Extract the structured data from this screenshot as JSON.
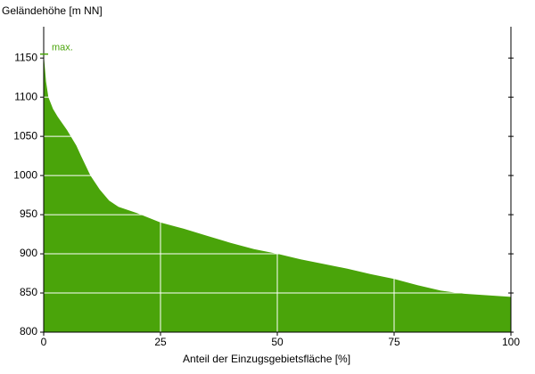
{
  "chart_data": {
    "type": "area",
    "y_title": "Geländehöhe [m NN]",
    "x_title": "Anteil der Einzugsgebietsfläche [%]",
    "x": [
      0,
      0.5,
      1,
      2,
      3,
      5,
      7,
      8,
      10,
      12,
      14,
      16,
      20,
      25,
      30,
      35,
      40,
      45,
      50,
      55,
      60,
      65,
      70,
      75,
      80,
      85,
      90,
      95,
      100
    ],
    "values": [
      1155,
      1120,
      1100,
      1085,
      1075,
      1058,
      1038,
      1025,
      1000,
      982,
      968,
      960,
      952,
      940,
      932,
      923,
      914,
      906,
      900,
      893,
      887,
      881,
      874,
      868,
      860,
      853,
      849,
      847,
      845
    ],
    "color": "#4aa40a",
    "xlim": [
      0,
      100
    ],
    "xticks": [
      0,
      25,
      50,
      75,
      100
    ],
    "ylim": [
      800,
      1190
    ],
    "yticks": [
      800,
      850,
      900,
      950,
      1000,
      1050,
      1100,
      1150
    ],
    "grid": true,
    "annotation": {
      "text": "max.",
      "value": 1155
    }
  }
}
